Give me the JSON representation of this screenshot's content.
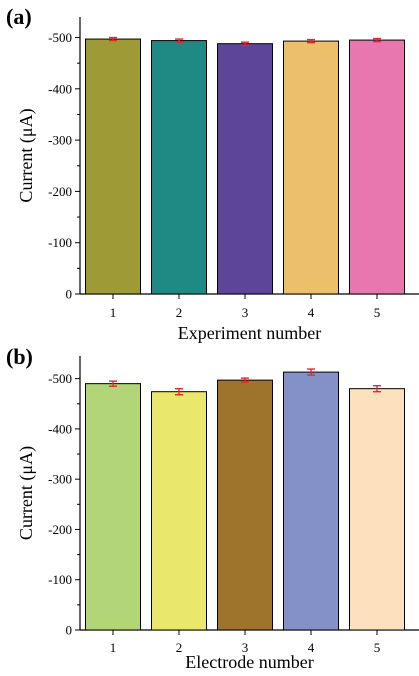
{
  "chart_data": [
    {
      "type": "bar",
      "panel_label": "(a)",
      "categories": [
        "1",
        "2",
        "3",
        "4",
        "5"
      ],
      "values": [
        -497,
        -494,
        -488,
        -493,
        -495
      ],
      "errors": [
        3,
        3,
        3,
        3,
        3
      ],
      "colors": [
        "#9e9a35",
        "#1f8a83",
        "#5b4699",
        "#ecc06a",
        "#e977af"
      ],
      "xlabel": "Experiment number",
      "ylabel": "Current (μA)",
      "ylim": [
        0,
        -540
      ],
      "yticks": [
        0,
        -100,
        -200,
        -300,
        -400,
        -500
      ],
      "ytick_labels": [
        "0",
        "-100",
        "-200",
        "-300",
        "-400",
        "-500"
      ],
      "grid": false
    },
    {
      "type": "bar",
      "panel_label": "(b)",
      "categories": [
        "1",
        "2",
        "3",
        "4",
        "5"
      ],
      "values": [
        -490,
        -474,
        -497,
        -513,
        -480
      ],
      "errors": [
        5,
        6,
        4,
        6,
        6
      ],
      "colors": [
        "#b2d578",
        "#e9e86c",
        "#9e742c",
        "#8491c8",
        "#fde0bd"
      ],
      "xlabel": "Electrode number",
      "ylabel": "Current (μA)",
      "ylim": [
        0,
        -545
      ],
      "yticks": [
        0,
        -100,
        -200,
        -300,
        -400,
        -500
      ],
      "ytick_labels": [
        "0",
        "-100",
        "-200",
        "-300",
        "-400",
        "-500"
      ],
      "grid": false
    }
  ]
}
